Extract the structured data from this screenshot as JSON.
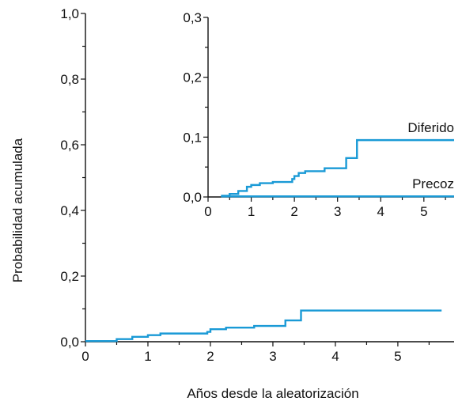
{
  "chart_data": [
    {
      "type": "line",
      "xlabel": "Años desde la aleatorización",
      "ylabel": "Probabilidad acumulada",
      "xlim": [
        0,
        5.9
      ],
      "ylim": [
        0,
        1.0
      ],
      "x_ticks": [
        "0",
        "1",
        "2",
        "3",
        "4",
        "5"
      ],
      "y_ticks": [
        "0,0",
        "0,2",
        "0,4",
        "0,6",
        "0,8",
        "1,0"
      ],
      "step": true,
      "grid": false,
      "series": [
        {
          "color": "#1a9ad6",
          "x": [
            0,
            0.5,
            0.75,
            1.0,
            1.2,
            1.95,
            2.0,
            2.25,
            2.7,
            3.2,
            3.45,
            5.7
          ],
          "y": [
            0.002,
            0.008,
            0.015,
            0.02,
            0.025,
            0.03,
            0.038,
            0.043,
            0.048,
            0.065,
            0.095,
            0.095
          ]
        }
      ]
    },
    {
      "type": "line",
      "inset": true,
      "xlim": [
        0,
        5.7
      ],
      "ylim": [
        0,
        0.3
      ],
      "x_ticks": [
        "0",
        "1",
        "2",
        "3",
        "4",
        "5"
      ],
      "y_ticks": [
        "0,0",
        "0,1",
        "0,2",
        "0,3"
      ],
      "step": true,
      "grid": false,
      "series": [
        {
          "name": "Diferido",
          "color": "#1a9ad6",
          "x": [
            0.3,
            0.5,
            0.7,
            0.9,
            1.0,
            1.2,
            1.5,
            1.95,
            2.0,
            2.1,
            2.25,
            2.7,
            3.2,
            3.45,
            5.7
          ],
          "y": [
            0.002,
            0.005,
            0.01,
            0.017,
            0.02,
            0.023,
            0.025,
            0.03,
            0.035,
            0.04,
            0.043,
            0.048,
            0.065,
            0.095,
            0.095
          ]
        },
        {
          "name": "Precoz",
          "color": "#1a9ad6",
          "x": [
            0.3,
            5.7
          ],
          "y": [
            0.001,
            0.001
          ]
        }
      ]
    }
  ]
}
